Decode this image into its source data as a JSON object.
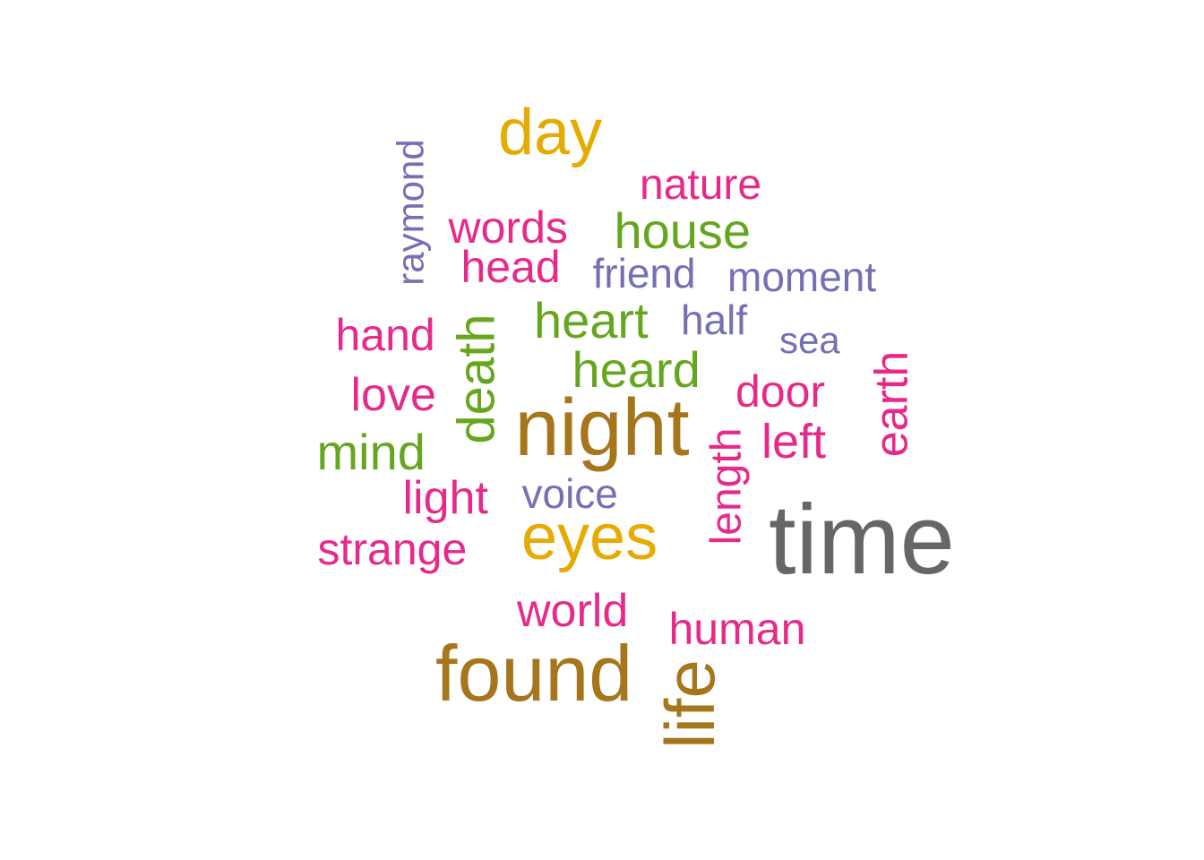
{
  "palette": {
    "gray": "#666666",
    "brown": "#a6761d",
    "gold": "#e6ab02",
    "green": "#66a61e",
    "magenta": "#e7298a",
    "purple": "#7570b3"
  },
  "words": [
    {
      "text": "time",
      "color": "#666666",
      "weight": 10,
      "rotated": false
    },
    {
      "text": "night",
      "color": "#a6761d",
      "weight": 9,
      "rotated": false
    },
    {
      "text": "found",
      "color": "#a6761d",
      "weight": 9,
      "rotated": false
    },
    {
      "text": "life",
      "color": "#a6761d",
      "weight": 8,
      "rotated": true
    },
    {
      "text": "eyes",
      "color": "#e6ab02",
      "weight": 7,
      "rotated": false
    },
    {
      "text": "day",
      "color": "#e6ab02",
      "weight": 7,
      "rotated": false
    },
    {
      "text": "death",
      "color": "#66a61e",
      "weight": 6,
      "rotated": true
    },
    {
      "text": "heard",
      "color": "#66a61e",
      "weight": 5,
      "rotated": false
    },
    {
      "text": "heart",
      "color": "#66a61e",
      "weight": 5,
      "rotated": false
    },
    {
      "text": "house",
      "color": "#66a61e",
      "weight": 5,
      "rotated": false
    },
    {
      "text": "mind",
      "color": "#66a61e",
      "weight": 5,
      "rotated": false
    },
    {
      "text": "left",
      "color": "#e7298a",
      "weight": 4,
      "rotated": false
    },
    {
      "text": "earth",
      "color": "#e7298a",
      "weight": 4,
      "rotated": true
    },
    {
      "text": "love",
      "color": "#e7298a",
      "weight": 4,
      "rotated": false
    },
    {
      "text": "light",
      "color": "#e7298a",
      "weight": 4,
      "rotated": false
    },
    {
      "text": "door",
      "color": "#e7298a",
      "weight": 4,
      "rotated": false
    },
    {
      "text": "head",
      "color": "#e7298a",
      "weight": 4,
      "rotated": false
    },
    {
      "text": "words",
      "color": "#e7298a",
      "weight": 4,
      "rotated": false
    },
    {
      "text": "world",
      "color": "#e7298a",
      "weight": 4,
      "rotated": false
    },
    {
      "text": "hand",
      "color": "#e7298a",
      "weight": 4,
      "rotated": false
    },
    {
      "text": "strange",
      "color": "#e7298a",
      "weight": 4,
      "rotated": false
    },
    {
      "text": "nature",
      "color": "#e7298a",
      "weight": 4,
      "rotated": false
    },
    {
      "text": "human",
      "color": "#e7298a",
      "weight": 4,
      "rotated": false
    },
    {
      "text": "length",
      "color": "#e7298a",
      "weight": 4,
      "rotated": true
    },
    {
      "text": "voice",
      "color": "#7570b3",
      "weight": 3,
      "rotated": false
    },
    {
      "text": "friend",
      "color": "#7570b3",
      "weight": 3,
      "rotated": false
    },
    {
      "text": "moment",
      "color": "#7570b3",
      "weight": 3,
      "rotated": false
    },
    {
      "text": "half",
      "color": "#7570b3",
      "weight": 3,
      "rotated": false
    },
    {
      "text": "sea",
      "color": "#7570b3",
      "weight": 3,
      "rotated": false
    },
    {
      "text": "raymond",
      "color": "#7570b3",
      "weight": 3,
      "rotated": true
    }
  ]
}
